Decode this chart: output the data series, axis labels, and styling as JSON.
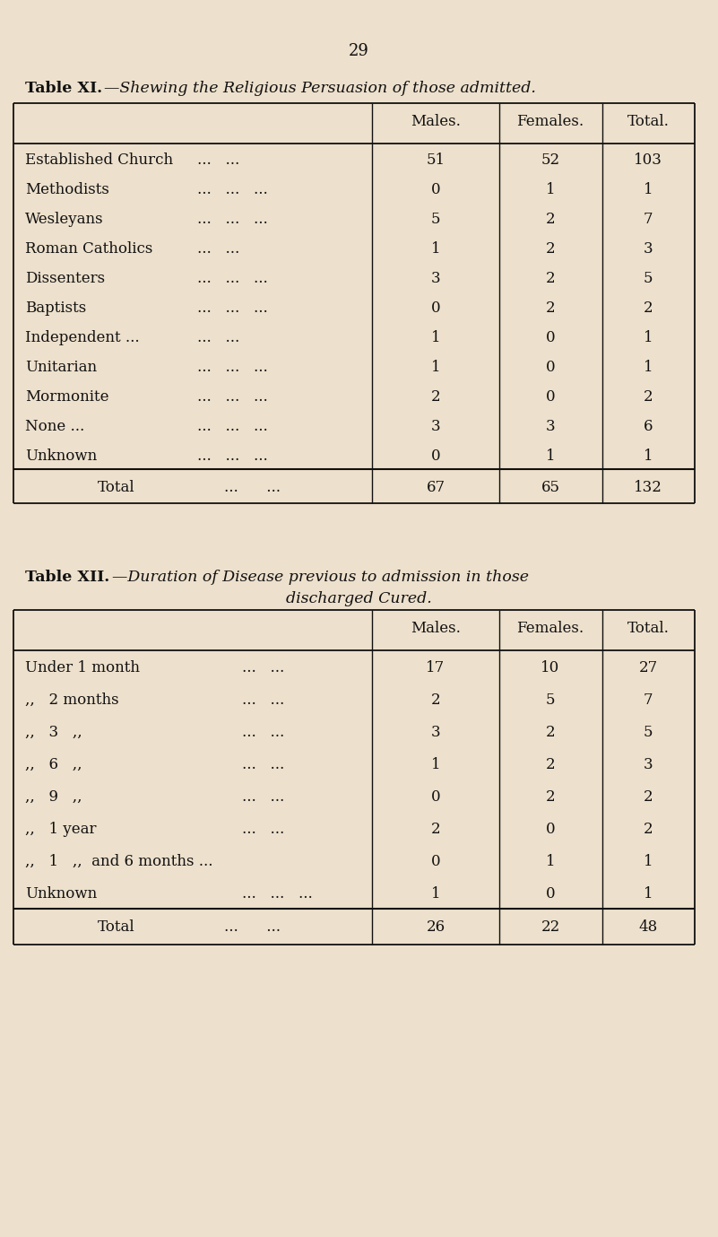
{
  "bg_color": "#ede0cc",
  "page_number": "29",
  "table1": {
    "title_prefix": "Table XI.",
    "title_rest": "—Shewing the Religious Persuasion of those admitted.",
    "col_headers": [
      "Males.",
      "Females.",
      "Total."
    ],
    "row_labels": [
      "Established Church",
      "Methodists",
      "Wesleyans",
      "Roman Catholics",
      "Dissenters",
      "Baptists",
      "Independent ...",
      "Unitarian",
      "Mormonite",
      "None ...",
      "Unknown"
    ],
    "row_dots": [
      "...   ...",
      "...   ...   ...",
      "...   ...   ...",
      "...   ...",
      "...   ...   ...",
      "...   ...   ...",
      "...   ...",
      "...   ...   ...",
      "...   ...   ...",
      "...   ...   ...",
      "...   ...   ..."
    ],
    "males": [
      "51",
      "0",
      "5",
      "1",
      "3",
      "0",
      "1",
      "1",
      "2",
      "3",
      "0"
    ],
    "females": [
      "52",
      "1",
      "2",
      "2",
      "2",
      "2",
      "0",
      "0",
      "0",
      "3",
      "1"
    ],
    "totals": [
      "103",
      "1",
      "7",
      "3",
      "5",
      "2",
      "1",
      "1",
      "2",
      "6",
      "1"
    ],
    "total_males": "67",
    "total_females": "65",
    "total_total": "132"
  },
  "table2": {
    "title_prefix": "Table XII.",
    "title_line1": "—Duration of Disease previous to admission in those",
    "title_line2": "discharged Cured.",
    "col_headers": [
      "Males.",
      "Females.",
      "Total."
    ],
    "row_labels": [
      "Under 1 month",
      ",,   2 months",
      ",,   3   ,,",
      ",,   6   ,,",
      ",,   9   ,,",
      ",,   1 year",
      ",,   1   ,,  and 6 months ...",
      "Unknown"
    ],
    "row_dots": [
      "...   ...",
      "...   ...",
      "...   ...",
      "...   ...",
      "...   ...",
      "...   ...",
      "",
      "...   ...   ..."
    ],
    "males": [
      "17",
      "2",
      "3",
      "1",
      "0",
      "2",
      "0",
      "1"
    ],
    "females": [
      "10",
      "5",
      "2",
      "2",
      "2",
      "0",
      "1",
      "0"
    ],
    "totals": [
      "27",
      "7",
      "5",
      "3",
      "2",
      "2",
      "1",
      "1"
    ],
    "total_males": "26",
    "total_females": "22",
    "total_total": "48"
  }
}
